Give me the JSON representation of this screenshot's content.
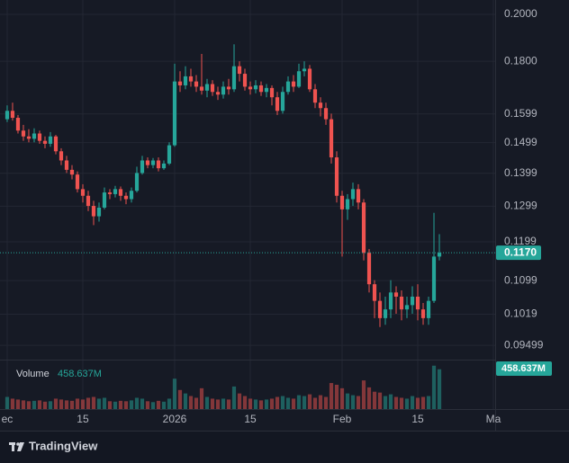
{
  "chart_data": {
    "type": "candlestick",
    "log_scale": true,
    "grid": true,
    "up_color": "#26a69a",
    "down_color": "#ef5350",
    "xlim": [
      -1.33,
      90.33
    ],
    "xticks": [
      {
        "value": 0,
        "label": "ec"
      },
      {
        "value": 14,
        "label": "15"
      },
      {
        "value": 31,
        "label": "2026"
      },
      {
        "value": 45,
        "label": "15"
      },
      {
        "value": 62,
        "label": "Feb"
      },
      {
        "value": 76,
        "label": "15"
      },
      {
        "value": 90,
        "label": "Ma"
      }
    ],
    "ylim": [
      0.092,
      0.2066
    ],
    "yticks": [
      {
        "value": 0.2,
        "label": "0.2000"
      },
      {
        "value": 0.18,
        "label": "0.1800"
      },
      0.1599,
      0.1499,
      0.1399,
      0.1299,
      0.1199,
      0.1099,
      0.1019,
      0.09499
    ],
    "current_price": {
      "value": 0.117,
      "label": "0.1170"
    },
    "volume_label": "Volume",
    "last_volume": {
      "value": 458637000,
      "label": "458.637M"
    },
    "volume_lim": [
      0,
      570000000
    ],
    "x": [
      0,
      1,
      2,
      3,
      4,
      5,
      6,
      7,
      8,
      9,
      10,
      11,
      12,
      13,
      14,
      15,
      16,
      17,
      18,
      19,
      20,
      21,
      22,
      23,
      24,
      25,
      26,
      27,
      28,
      29,
      30,
      31,
      32,
      33,
      34,
      35,
      36,
      37,
      38,
      39,
      40,
      41,
      42,
      43,
      44,
      45,
      46,
      47,
      48,
      49,
      50,
      51,
      52,
      53,
      54,
      55,
      56,
      57,
      58,
      59,
      60,
      61,
      62,
      63,
      64,
      65,
      66,
      67,
      68,
      69,
      70,
      71,
      72,
      73,
      74,
      75,
      76,
      77,
      78,
      79,
      80
    ],
    "open": [
      0.158,
      0.161,
      0.1585,
      0.154,
      0.152,
      0.1512,
      0.153,
      0.1505,
      0.1495,
      0.152,
      0.147,
      0.144,
      0.141,
      0.1395,
      0.135,
      0.133,
      0.13,
      0.127,
      0.1295,
      0.134,
      0.1335,
      0.135,
      0.133,
      0.132,
      0.1345,
      0.14,
      0.144,
      0.1425,
      0.144,
      0.1415,
      0.143,
      0.149,
      0.172,
      0.1705,
      0.174,
      0.172,
      0.17,
      0.1685,
      0.171,
      0.168,
      0.167,
      0.17,
      0.169,
      0.178,
      0.175,
      0.17,
      0.169,
      0.1705,
      0.168,
      0.1695,
      0.166,
      0.161,
      0.168,
      0.172,
      0.17,
      0.176,
      0.177,
      0.169,
      0.164,
      0.162,
      0.158,
      0.145,
      0.133,
      0.129,
      0.132,
      0.135,
      0.131,
      0.117,
      0.109,
      0.105,
      0.101,
      0.103,
      0.107,
      0.106,
      0.103,
      0.104,
      0.106,
      0.103,
      0.101,
      0.105,
      0.116
    ],
    "high": [
      0.163,
      0.164,
      0.1595,
      0.156,
      0.1545,
      0.1548,
      0.154,
      0.152,
      0.1535,
      0.1525,
      0.148,
      0.1455,
      0.1425,
      0.1405,
      0.1365,
      0.1345,
      0.1315,
      0.131,
      0.1355,
      0.135,
      0.136,
      0.1358,
      0.134,
      0.1355,
      0.142,
      0.1455,
      0.145,
      0.1448,
      0.145,
      0.144,
      0.15,
      0.179,
      0.176,
      0.178,
      0.177,
      0.1745,
      0.183,
      0.173,
      0.1725,
      0.17,
      0.172,
      0.173,
      0.187,
      0.18,
      0.177,
      0.172,
      0.1725,
      0.172,
      0.171,
      0.1705,
      0.168,
      0.17,
      0.174,
      0.1745,
      0.179,
      0.18,
      0.1785,
      0.171,
      0.166,
      0.164,
      0.16,
      0.147,
      0.1345,
      0.1335,
      0.137,
      0.1365,
      0.132,
      0.118,
      0.11,
      0.107,
      0.106,
      0.11,
      0.1085,
      0.1075,
      0.106,
      0.1085,
      0.109,
      0.1045,
      0.106,
      0.128,
      0.122
    ],
    "low": [
      0.157,
      0.1575,
      0.153,
      0.1505,
      0.15,
      0.15,
      0.1495,
      0.148,
      0.1485,
      0.146,
      0.1425,
      0.14,
      0.138,
      0.134,
      0.131,
      0.1285,
      0.1245,
      0.1255,
      0.129,
      0.132,
      0.1325,
      0.1315,
      0.1305,
      0.131,
      0.134,
      0.1395,
      0.1415,
      0.1415,
      0.1405,
      0.141,
      0.1425,
      0.1485,
      0.168,
      0.169,
      0.17,
      0.168,
      0.167,
      0.166,
      0.1665,
      0.165,
      0.1655,
      0.167,
      0.168,
      0.172,
      0.1685,
      0.167,
      0.1675,
      0.1665,
      0.166,
      0.163,
      0.1595,
      0.16,
      0.167,
      0.168,
      0.1695,
      0.174,
      0.168,
      0.162,
      0.159,
      0.156,
      0.143,
      0.131,
      0.116,
      0.126,
      0.13,
      0.129,
      0.115,
      0.107,
      0.101,
      0.099,
      0.0995,
      0.101,
      0.102,
      0.1005,
      0.101,
      0.102,
      0.1005,
      0.0995,
      0.0995,
      0.1045,
      0.115
    ],
    "close": [
      0.161,
      0.1585,
      0.154,
      0.152,
      0.1512,
      0.153,
      0.1505,
      0.1495,
      0.152,
      0.147,
      0.144,
      0.141,
      0.1395,
      0.135,
      0.133,
      0.13,
      0.127,
      0.1295,
      0.134,
      0.1335,
      0.135,
      0.133,
      0.132,
      0.1345,
      0.14,
      0.144,
      0.1425,
      0.144,
      0.1415,
      0.143,
      0.149,
      0.172,
      0.1705,
      0.174,
      0.172,
      0.17,
      0.1685,
      0.171,
      0.168,
      0.167,
      0.17,
      0.169,
      0.178,
      0.175,
      0.17,
      0.169,
      0.1705,
      0.168,
      0.1695,
      0.166,
      0.161,
      0.168,
      0.172,
      0.17,
      0.176,
      0.177,
      0.169,
      0.164,
      0.162,
      0.158,
      0.145,
      0.133,
      0.129,
      0.132,
      0.135,
      0.131,
      0.117,
      0.109,
      0.105,
      0.101,
      0.103,
      0.107,
      0.106,
      0.103,
      0.104,
      0.106,
      0.103,
      0.101,
      0.105,
      0.116,
      0.117
    ],
    "volume": [
      140000000,
      120000000,
      110000000,
      100000000,
      90000000,
      95000000,
      100000000,
      85000000,
      90000000,
      120000000,
      110000000,
      100000000,
      95000000,
      120000000,
      110000000,
      130000000,
      140000000,
      120000000,
      130000000,
      90000000,
      85000000,
      95000000,
      90000000,
      100000000,
      130000000,
      120000000,
      90000000,
      80000000,
      95000000,
      85000000,
      120000000,
      350000000,
      220000000,
      180000000,
      150000000,
      130000000,
      240000000,
      140000000,
      120000000,
      110000000,
      120000000,
      110000000,
      260000000,
      180000000,
      150000000,
      120000000,
      110000000,
      100000000,
      110000000,
      120000000,
      140000000,
      150000000,
      130000000,
      120000000,
      160000000,
      150000000,
      170000000,
      130000000,
      160000000,
      140000000,
      300000000,
      280000000,
      240000000,
      180000000,
      160000000,
      150000000,
      330000000,
      250000000,
      200000000,
      190000000,
      150000000,
      170000000,
      140000000,
      130000000,
      120000000,
      150000000,
      130000000,
      140000000,
      150000000,
      500000000,
      458637000
    ]
  },
  "brand": "TradingView"
}
